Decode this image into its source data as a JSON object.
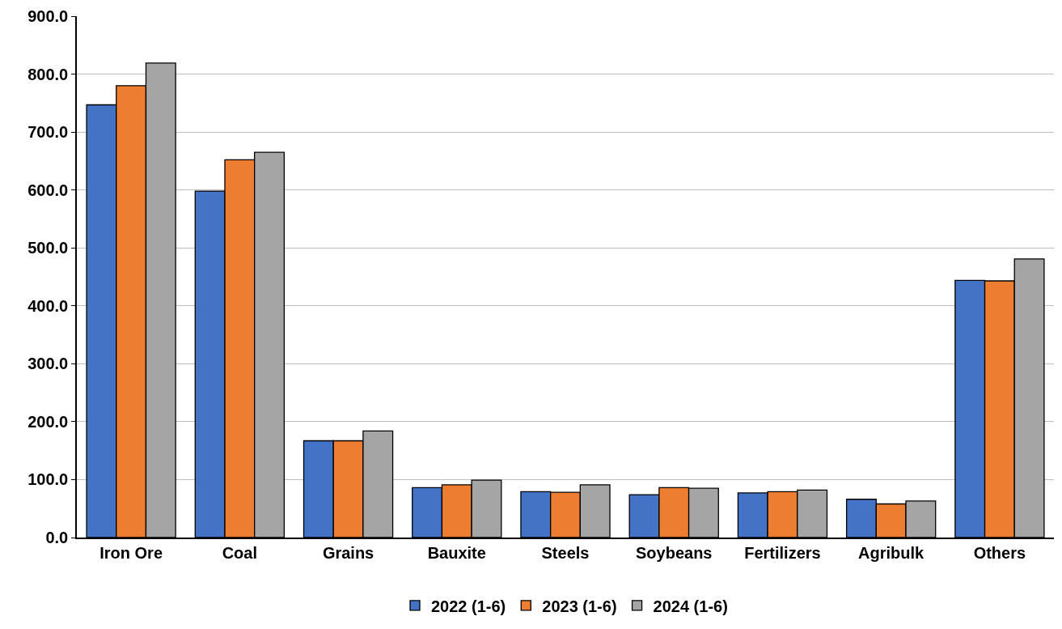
{
  "chart_data": {
    "type": "bar",
    "categories": [
      "Iron Ore",
      "Coal",
      "Grains",
      "Bauxite",
      "Steels",
      "Soybeans",
      "Fertilizers",
      "Agribulk",
      "Others"
    ],
    "series": [
      {
        "name": "2022 (1-6)",
        "color": "#4472c4",
        "values": [
          747,
          598,
          167,
          86,
          79,
          74,
          77,
          66,
          444
        ]
      },
      {
        "name": "2023 (1-6)",
        "color": "#ed7d31",
        "values": [
          780,
          652,
          167,
          91,
          78,
          86,
          79,
          58,
          443
        ]
      },
      {
        "name": "2024 (1-6)",
        "color": "#a5a5a5",
        "values": [
          819,
          665,
          184,
          99,
          91,
          85,
          82,
          63,
          481
        ]
      }
    ],
    "ylim": [
      0,
      900
    ],
    "yticks": [
      {
        "value": 0,
        "label": "0.0"
      },
      {
        "value": 100,
        "label": "100.0"
      },
      {
        "value": 200,
        "label": "200.0"
      },
      {
        "value": 300,
        "label": "300.0"
      },
      {
        "value": 400,
        "label": "400.0"
      },
      {
        "value": 500,
        "label": "500.0"
      },
      {
        "value": 600,
        "label": "600.0"
      },
      {
        "value": 700,
        "label": "700.0"
      },
      {
        "value": 800,
        "label": "800.0"
      },
      {
        "value": 900,
        "label": "900.0"
      }
    ],
    "grid": "y",
    "legend": "bottom"
  }
}
